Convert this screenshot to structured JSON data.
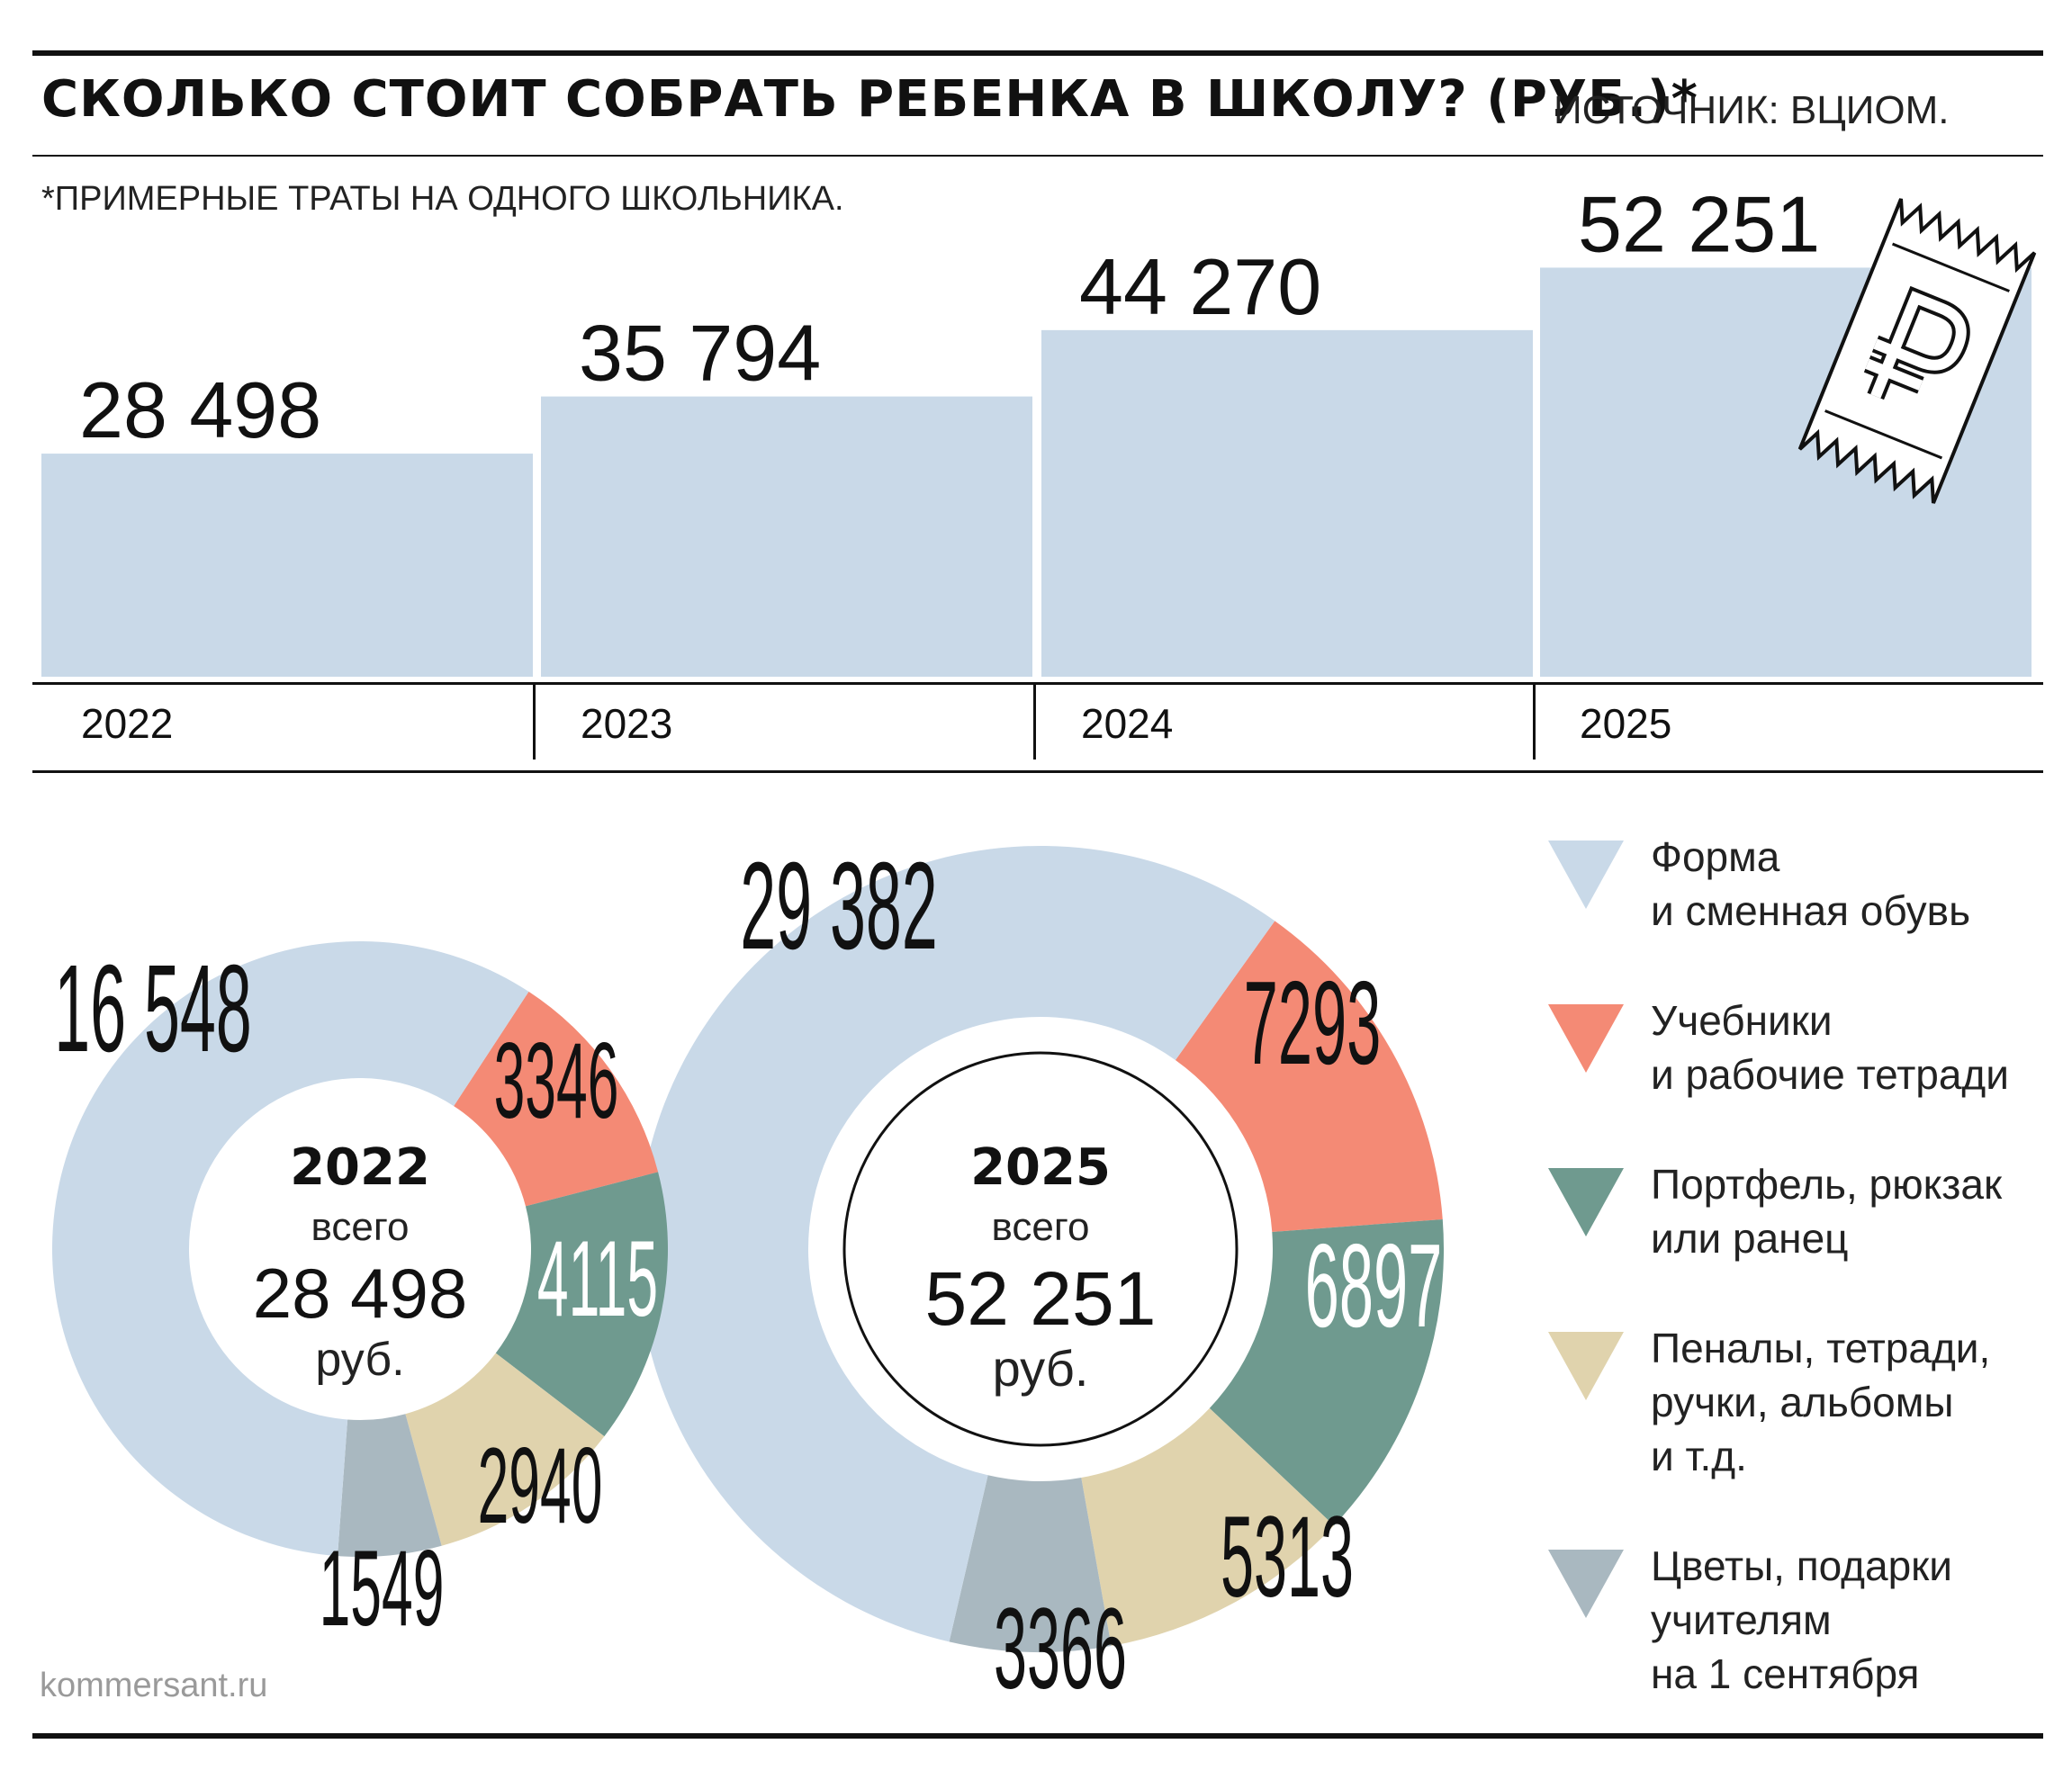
{
  "header": {
    "title": "СКОЛЬКО СТОИТ СОБРАТЬ РЕБЕНКА В ШКОЛУ? (РУБ.)*",
    "source": "ИСТОЧНИК: ВЦИОМ.",
    "footnote": "*ПРИМЕРНЫЕ ТРАТЫ НА ОДНОГО ШКОЛЬНИКА."
  },
  "footer": {
    "website": "kommersant.ru"
  },
  "colors": {
    "uniform": "#c9d9e8",
    "textbooks": "#f48a75",
    "backpack": "#6f9a8f",
    "stationery": "#e0d3ad",
    "flowers": "#a9b8c0",
    "bar": "#c9d9e8",
    "ink": "#111111"
  },
  "chart_data": [
    {
      "type": "bar",
      "categories": [
        "2022",
        "2023",
        "2024",
        "2025"
      ],
      "values": [
        28498,
        35794,
        44270,
        52251
      ],
      "value_labels": [
        "28 498",
        "35 794",
        "44 270",
        "52 251"
      ],
      "icon": "ruble-receipt-icon"
    },
    {
      "type": "pie",
      "variant": "donut",
      "center_year": "2022",
      "center_caption": "всего",
      "center_total": "28 498",
      "center_unit": "руб.",
      "slices": [
        {
          "category": "uniform",
          "value": 16548,
          "label": "16 548"
        },
        {
          "category": "textbooks",
          "value": 3346,
          "label": "3346"
        },
        {
          "category": "backpack",
          "value": 4115,
          "label": "4115"
        },
        {
          "category": "stationery",
          "value": 2940,
          "label": "2940"
        },
        {
          "category": "flowers",
          "value": 1549,
          "label": "1549"
        }
      ]
    },
    {
      "type": "pie",
      "variant": "donut",
      "center_year": "2025",
      "center_caption": "всего",
      "center_total": "52 251",
      "center_unit": "руб.",
      "slices": [
        {
          "category": "uniform",
          "value": 29382,
          "label": "29 382"
        },
        {
          "category": "textbooks",
          "value": 7293,
          "label": "7293"
        },
        {
          "category": "backpack",
          "value": 6897,
          "label": "6897"
        },
        {
          "category": "stationery",
          "value": 5313,
          "label": "5313"
        },
        {
          "category": "flowers",
          "value": 3366,
          "label": "3366"
        }
      ]
    }
  ],
  "legend": [
    {
      "category": "uniform",
      "lines": [
        "Форма",
        "и сменная обувь"
      ]
    },
    {
      "category": "textbooks",
      "lines": [
        "Учебники",
        "и рабочие тетради"
      ]
    },
    {
      "category": "backpack",
      "lines": [
        "Портфель, рюкзак",
        "или ранец"
      ]
    },
    {
      "category": "stationery",
      "lines": [
        "Пеналы, тетради,",
        "ручки, альбомы",
        "и т.д."
      ]
    },
    {
      "category": "flowers",
      "lines": [
        "Цветы, подарки",
        "учителям",
        "на 1 сентября"
      ]
    }
  ]
}
